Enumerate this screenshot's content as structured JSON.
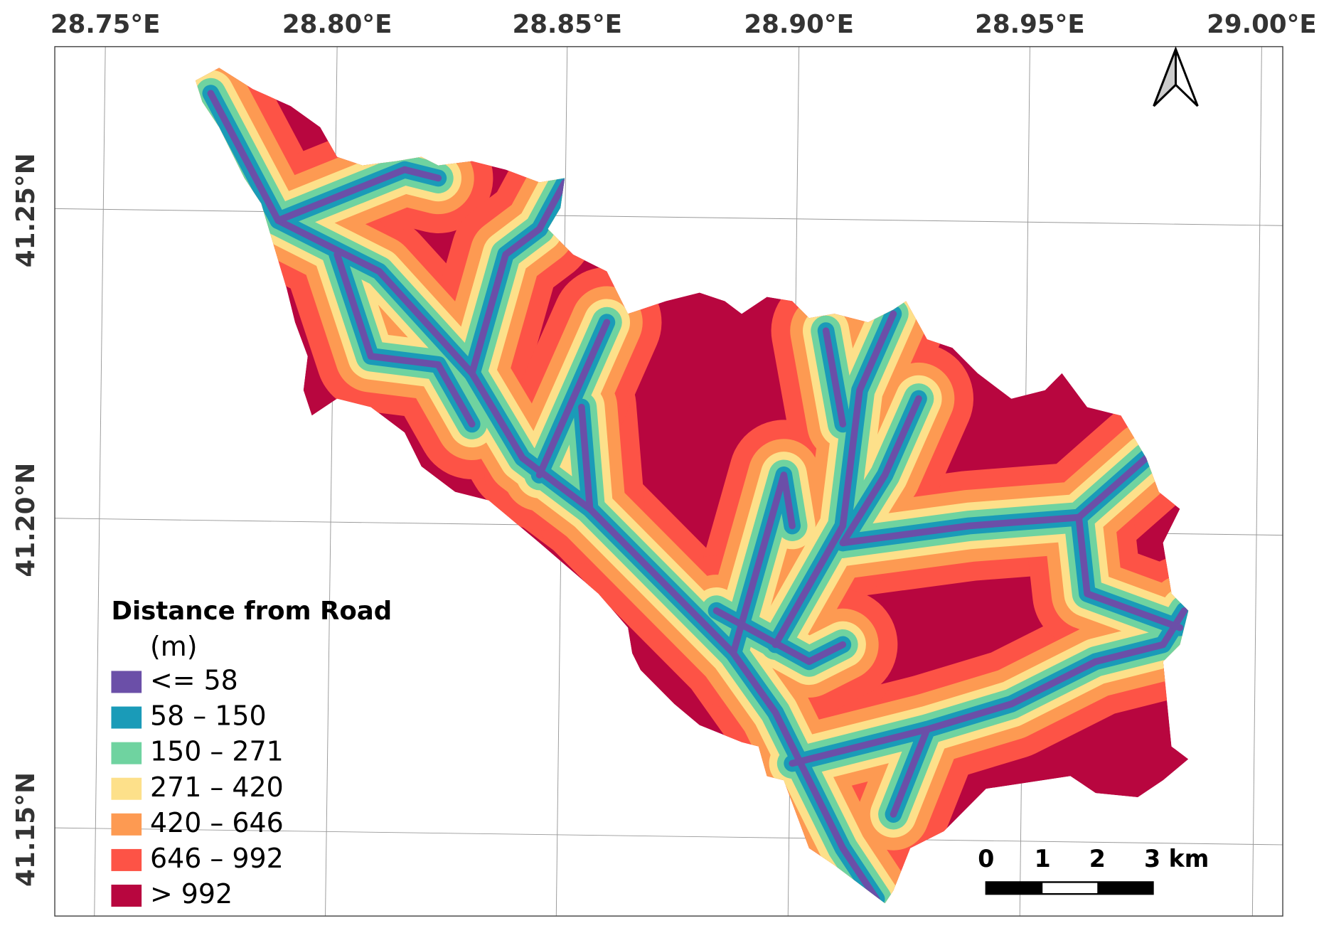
{
  "map": {
    "x_labels": [
      "28.75°E",
      "28.80°E",
      "28.85°E",
      "28.90°E",
      "28.95°E",
      "29.00°E"
    ],
    "y_labels": [
      "41.25°N",
      "41.20°N",
      "41.15°N"
    ],
    "legend": {
      "title": "Distance from Road",
      "unit": "(m)",
      "items": [
        {
          "label": "<= 58",
          "color": "#6b4fa8"
        },
        {
          "label": "58 – 150",
          "color": "#1a9bb8"
        },
        {
          "label": "150 – 271",
          "color": "#6fd3a0"
        },
        {
          "label": "271 – 420",
          "color": "#fde08a"
        },
        {
          "label": "420 – 646",
          "color": "#fd9a52"
        },
        {
          "label": "646 – 992",
          "color": "#fd5346"
        },
        {
          "label": "> 992",
          "color": "#b8063f"
        }
      ]
    },
    "scale_bar": {
      "labels": [
        "0",
        "1",
        "2",
        "3 km"
      ]
    }
  }
}
